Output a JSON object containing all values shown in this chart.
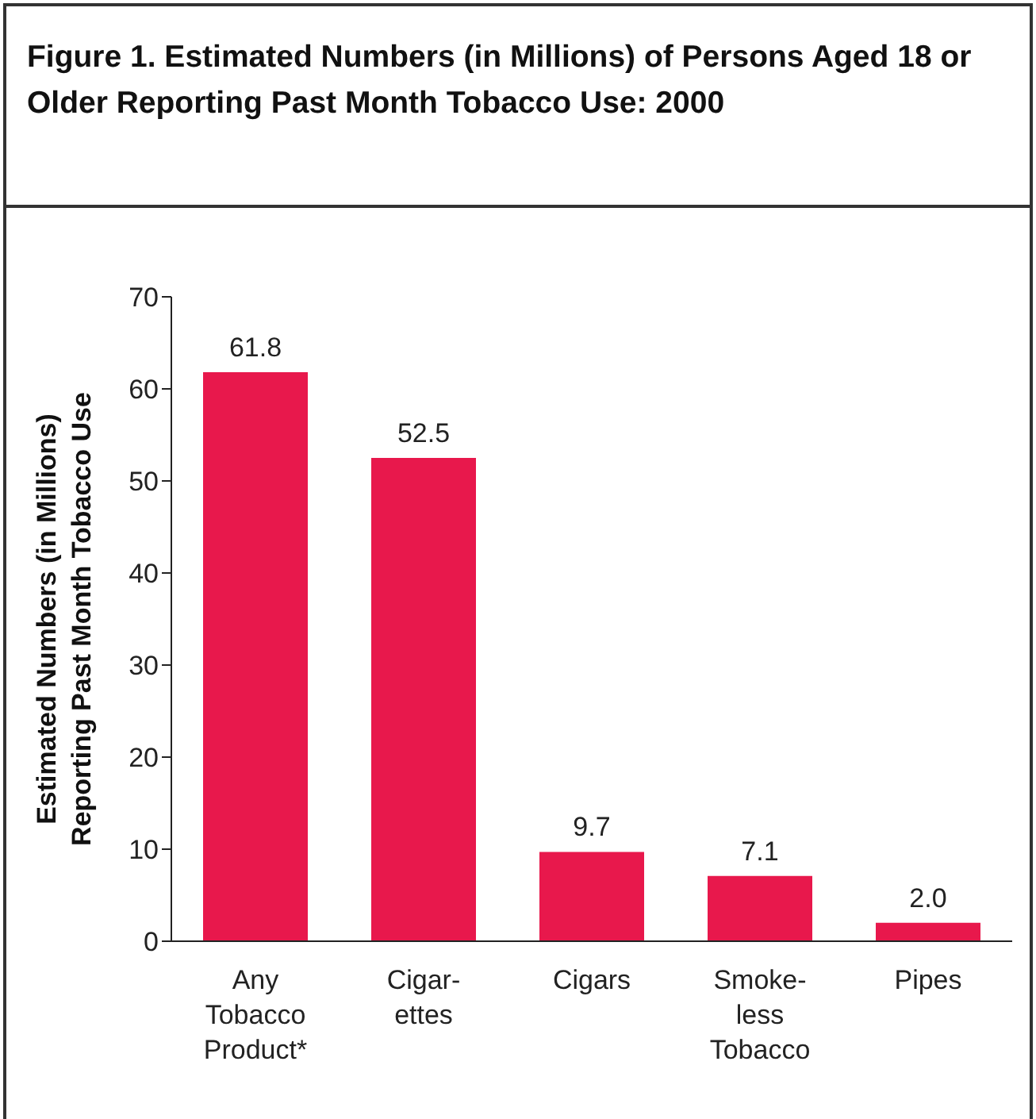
{
  "chart_data": {
    "type": "bar",
    "title": "Figure 1.  Estimated Numbers (in Millions) of Persons Aged 18 or Older Reporting Past Month Tobacco Use: 2000",
    "ylabel": "Estimated Numbers (in Millions)\nReporting Past Month Tobacco Use",
    "categories": [
      "Any\nTobacco\nProduct*",
      "Cigar-\nettes",
      "Cigars",
      "Smoke-\nless\nTobacco",
      "Pipes"
    ],
    "values": [
      61.8,
      52.5,
      9.7,
      7.1,
      2.0
    ],
    "color": "#e8184c",
    "ylim": [
      0,
      70
    ],
    "yticks": [
      0,
      10,
      20,
      30,
      40,
      50,
      60,
      70
    ],
    "value_labels": [
      "61.8",
      "52.5",
      "9.7",
      "7.1",
      "2.0"
    ],
    "grid": false,
    "legend": false
  }
}
